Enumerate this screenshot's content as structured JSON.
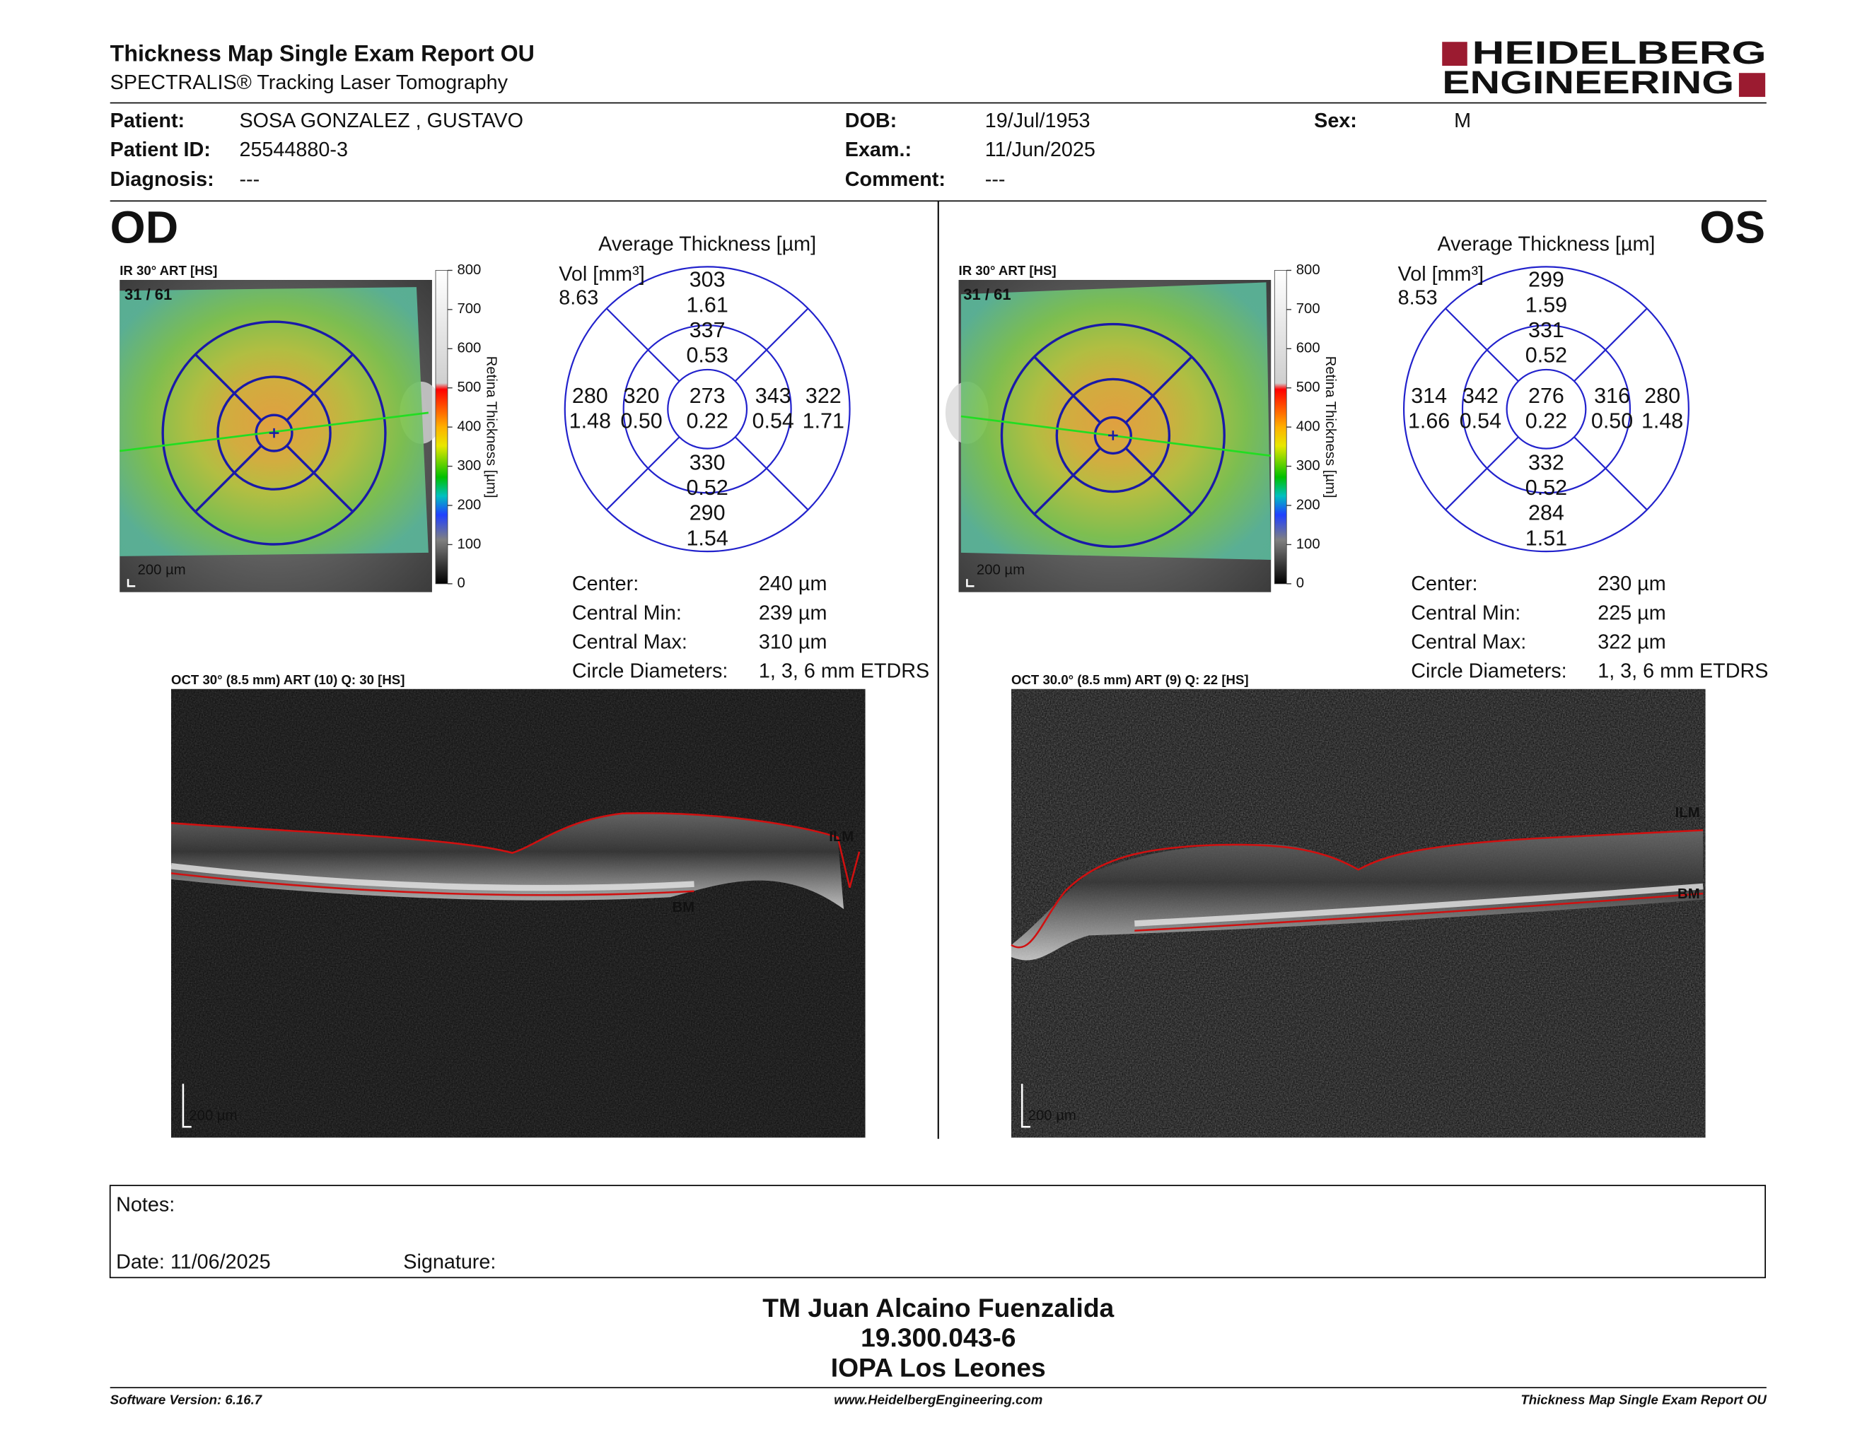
{
  "header": {
    "title": "Thickness Map Single Exam Report OU",
    "subtitle": "SPECTRALIS® Tracking Laser Tomography",
    "logo": [
      "HEIDELBERG",
      "ENGINEERING"
    ]
  },
  "patient": [
    {
      "label": "Patient:",
      "value": "SOSA GONZALEZ , GUSTAVO"
    },
    {
      "label": "Patient ID:",
      "value": "25544880-3"
    },
    {
      "label": "Diagnosis:",
      "value": "---"
    },
    {
      "label": "DOB:",
      "value": "19/Jul/1953"
    },
    {
      "label": "Exam.:",
      "value": "11/Jun/2025"
    },
    {
      "label": "Comment:",
      "value": "---"
    },
    {
      "label": "Sex:",
      "value": "M"
    }
  ],
  "eyes": [
    {
      "side": "OD",
      "ir_label": "IR 30° ART [HS]",
      "frames": "31 / 61",
      "ir_scale": "200 µm",
      "colorbar": {
        "title": "Retina Thickness [µm]",
        "ticks": [
          800,
          700,
          600,
          500,
          400,
          300,
          200,
          100,
          0
        ]
      },
      "grid": {
        "title": "Average Thickness [µm]",
        "vol_label": "Vol [mm³]",
        "vol": "8.63",
        "sectors": [
          {
            "thickness": "273",
            "volume": "0.22"
          },
          {
            "thickness": "337",
            "volume": "0.53"
          },
          {
            "thickness": "303",
            "volume": "1.61"
          },
          {
            "thickness": "330",
            "volume": "0.52"
          },
          {
            "thickness": "290",
            "volume": "1.54"
          },
          {
            "thickness": "320",
            "volume": "0.50"
          },
          {
            "thickness": "280",
            "volume": "1.48"
          },
          {
            "thickness": "343",
            "volume": "0.54"
          },
          {
            "thickness": "322",
            "volume": "1.71"
          }
        ]
      },
      "stats": [
        {
          "label": "Center:",
          "value": "240 µm"
        },
        {
          "label": "Central Min:",
          "value": "239 µm"
        },
        {
          "label": "Central Max:",
          "value": "310 µm"
        },
        {
          "label": "Circle Diameters:",
          "value": "1, 3, 6 mm ETDRS"
        }
      ],
      "oct_label": "OCT 30° (8.5 mm) ART (10) Q: 30 [HS]",
      "ilm": "ILM",
      "bm": "BM",
      "oct_scale": "200 µm"
    },
    {
      "side": "OS",
      "ir_label": "IR 30° ART [HS]",
      "frames": "31 / 61",
      "ir_scale": "200 µm",
      "colorbar": {
        "title": "Retina Thickness [µm]",
        "ticks": [
          800,
          700,
          600,
          500,
          400,
          300,
          200,
          100,
          0
        ]
      },
      "grid": {
        "title": "Average Thickness [µm]",
        "vol_label": "Vol [mm³]",
        "vol": "8.53",
        "sectors": [
          {
            "thickness": "276",
            "volume": "0.22"
          },
          {
            "thickness": "331",
            "volume": "0.52"
          },
          {
            "thickness": "299",
            "volume": "1.59"
          },
          {
            "thickness": "332",
            "volume": "0.52"
          },
          {
            "thickness": "284",
            "volume": "1.51"
          },
          {
            "thickness": "342",
            "volume": "0.54"
          },
          {
            "thickness": "314",
            "volume": "1.66"
          },
          {
            "thickness": "316",
            "volume": "0.50"
          },
          {
            "thickness": "280",
            "volume": "1.48"
          }
        ]
      },
      "stats": [
        {
          "label": "Center:",
          "value": "230 µm"
        },
        {
          "label": "Central Min:",
          "value": "225 µm"
        },
        {
          "label": "Central Max:",
          "value": "322 µm"
        },
        {
          "label": "Circle Diameters:",
          "value": "1, 3, 6 mm ETDRS"
        }
      ],
      "oct_label": "OCT 30.0° (8.5 mm) ART (9) Q: 22 [HS]",
      "ilm": "ILM",
      "bm": "BM",
      "oct_scale": "200 µm"
    }
  ],
  "notes": {
    "label": "Notes:",
    "date": "Date: 11/06/2025",
    "signature": "Signature:"
  },
  "signer": [
    "TM Juan Alcaino Fuenzalida",
    "19.300.043-6",
    "IOPA Los Leones"
  ],
  "footer": {
    "left": "Software Version: 6.16.7",
    "center": "www.HeidelbergEngineering.com",
    "right": "Thickness Map Single Exam Report OU"
  }
}
